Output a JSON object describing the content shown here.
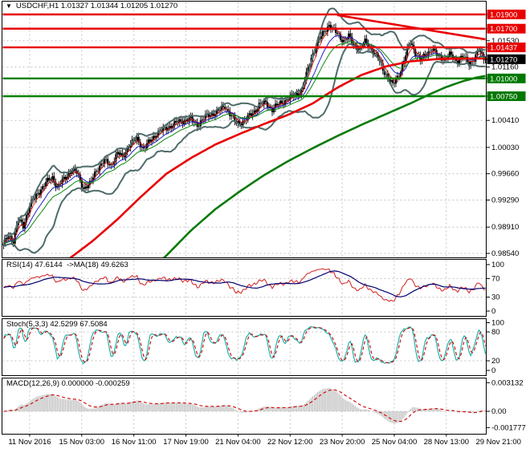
{
  "window": {
    "title": "USDCHF,H1 1.01327 1.01344 1.01205 1.01270"
  },
  "panels": {
    "rsi_label": "RSI(14) 47.6144  ->MA(18) 49.6263",
    "stoch_label": "Stoch(5,3,3) 42.5299 67.5084",
    "macd_label": "MACD(12,26,9) 0.000000 -0.000259"
  },
  "chart_data": {
    "type": "candlestick-with-indicators",
    "symbol": "USDCHF",
    "timeframe": "H1",
    "ohlc_display": {
      "open": "1.01327",
      "high": "1.01344",
      "low": "1.01205",
      "close": "1.01270"
    },
    "bars": 297,
    "x_axis": {
      "labels": [
        "11 Nov 2016",
        "15 Nov 03:00",
        "16 Nov 11:00",
        "17 Nov 19:00",
        "21 Nov 04:00",
        "22 Nov 12:00",
        "23 Nov 20:00",
        "25 Nov 04:00",
        "28 Nov 13:00",
        "29 Nov 21:00"
      ],
      "label_bars": [
        16,
        48,
        80,
        112,
        144,
        176,
        208,
        240,
        272,
        304
      ],
      "grid_bars": [
        16,
        48,
        80,
        112,
        144,
        176,
        208,
        240,
        272
      ]
    },
    "y_axis_main": {
      "plain_ticks": [
        {
          "label": "1.01530",
          "price": 1.0153
        },
        {
          "label": "1.01160",
          "price": 1.0116
        },
        {
          "label": "1.00785",
          "price": 1.00785,
          "hidden": true
        },
        {
          "label": "1.00410",
          "price": 1.0041
        },
        {
          "label": "1.00030",
          "price": 1.0003
        },
        {
          "label": "0.99660",
          "price": 0.9966
        },
        {
          "label": "0.99290",
          "price": 0.9929
        },
        {
          "label": "0.98910",
          "price": 0.9891
        },
        {
          "label": "0.98540",
          "price": 0.9854
        }
      ],
      "badges": [
        {
          "label": "1.01900",
          "price": 1.019,
          "type": "resistance"
        },
        {
          "label": "1.01700",
          "price": 1.017,
          "type": "resistance"
        },
        {
          "label": "1.01437",
          "price": 1.01437,
          "type": "resistance"
        },
        {
          "label": "1.01270",
          "price": 1.0127,
          "type": "current"
        },
        {
          "label": "1.01000",
          "price": 1.01,
          "type": "support"
        },
        {
          "label": "1.00750",
          "price": 1.0075,
          "type": "support"
        }
      ]
    },
    "levels": {
      "resistance": [
        1.019,
        1.017,
        1.01437
      ],
      "support": [
        1.01,
        1.0075
      ],
      "current": 1.0127
    },
    "trendline": {
      "from_bar": 205,
      "from_price": 1.0189,
      "to_bar": 297,
      "to_price": 1.0155
    },
    "price_anchors": [
      [
        0,
        0.9866
      ],
      [
        3,
        0.988
      ],
      [
        6,
        0.9872
      ],
      [
        9,
        0.9901
      ],
      [
        12,
        0.9893
      ],
      [
        16,
        0.9921
      ],
      [
        21,
        0.9939
      ],
      [
        26,
        0.9953
      ],
      [
        30,
        0.9961
      ],
      [
        33,
        0.9947
      ],
      [
        37,
        0.9958
      ],
      [
        42,
        0.9972
      ],
      [
        45,
        0.9967
      ],
      [
        49,
        0.9946
      ],
      [
        53,
        0.9951
      ],
      [
        57,
        0.9972
      ],
      [
        62,
        0.9984
      ],
      [
        66,
        0.9978
      ],
      [
        70,
        0.9995
      ],
      [
        73,
        0.9989
      ],
      [
        77,
        1.0006
      ],
      [
        82,
        1.0015
      ],
      [
        86,
        1.0001
      ],
      [
        90,
        1.0012
      ],
      [
        94,
        1.0023
      ],
      [
        99,
        1.0029
      ],
      [
        104,
        1.0035
      ],
      [
        109,
        1.004
      ],
      [
        114,
        1.0043
      ],
      [
        119,
        1.0035
      ],
      [
        124,
        1.0046
      ],
      [
        129,
        1.0051
      ],
      [
        132,
        1.0054
      ],
      [
        136,
        1.0061
      ],
      [
        140,
        1.0047
      ],
      [
        143,
        1.0036
      ],
      [
        148,
        1.0041
      ],
      [
        153,
        1.0051
      ],
      [
        157,
        1.0063
      ],
      [
        161,
        1.0065
      ],
      [
        165,
        1.0057
      ],
      [
        170,
        1.0065
      ],
      [
        175,
        1.0072
      ],
      [
        179,
        1.0076
      ],
      [
        183,
        1.0083
      ],
      [
        186,
        1.0105
      ],
      [
        189,
        1.0129
      ],
      [
        192,
        1.0147
      ],
      [
        195,
        1.0159
      ],
      [
        197,
        1.0166
      ],
      [
        200,
        1.0176
      ],
      [
        202,
        1.017
      ],
      [
        205,
        1.0162
      ],
      [
        209,
        1.0153
      ],
      [
        212,
        1.0159
      ],
      [
        215,
        1.0147
      ],
      [
        219,
        1.0142
      ],
      [
        222,
        1.0151
      ],
      [
        226,
        1.0142
      ],
      [
        230,
        1.0128
      ],
      [
        233,
        1.0113
      ],
      [
        236,
        1.0102
      ],
      [
        239,
        1.009
      ],
      [
        242,
        1.0102
      ],
      [
        245,
        1.0118
      ],
      [
        248,
        1.014
      ],
      [
        250,
        1.0152
      ],
      [
        253,
        1.0136
      ],
      [
        256,
        1.0125
      ],
      [
        259,
        1.0133
      ],
      [
        263,
        1.0142
      ],
      [
        267,
        1.013
      ],
      [
        271,
        1.0128
      ],
      [
        274,
        1.0133
      ],
      [
        278,
        1.0125
      ],
      [
        282,
        1.013
      ],
      [
        286,
        1.0121
      ],
      [
        289,
        1.0128
      ],
      [
        292,
        1.014
      ],
      [
        294,
        1.0131
      ],
      [
        296,
        1.0127
      ]
    ],
    "ma_red_anchors": [
      [
        30,
        0.983
      ],
      [
        40,
        0.9846
      ],
      [
        55,
        0.9872
      ],
      [
        70,
        0.9902
      ],
      [
        85,
        0.9935
      ],
      [
        100,
        0.9966
      ],
      [
        115,
        0.9988
      ],
      [
        130,
        1.0007
      ],
      [
        145,
        1.0022
      ],
      [
        160,
        1.0036
      ],
      [
        175,
        1.0049
      ],
      [
        190,
        1.0065
      ],
      [
        205,
        1.0087
      ],
      [
        220,
        1.0105
      ],
      [
        235,
        1.0117
      ],
      [
        250,
        1.0124
      ],
      [
        265,
        1.0127
      ],
      [
        280,
        1.0128
      ],
      [
        297,
        1.0128
      ]
    ],
    "ma_green_anchors": [
      [
        90,
        0.983
      ],
      [
        100,
        0.9851
      ],
      [
        115,
        0.9886
      ],
      [
        130,
        0.9916
      ],
      [
        145,
        0.9941
      ],
      [
        160,
        0.9964
      ],
      [
        175,
        0.9984
      ],
      [
        190,
        1.0002
      ],
      [
        205,
        1.0019
      ],
      [
        220,
        1.0035
      ],
      [
        235,
        1.005
      ],
      [
        250,
        1.0065
      ],
      [
        262,
        1.0078
      ],
      [
        272,
        1.0088
      ],
      [
        282,
        1.0096
      ],
      [
        290,
        1.0101
      ],
      [
        297,
        1.0104
      ]
    ],
    "indicators": {
      "rsi": {
        "period": 14,
        "ma_period": 18,
        "value": "47.6144",
        "ma_value": "49.6263",
        "ticks": [
          {
            "v": 100
          },
          {
            "v": 70,
            "grid": true
          },
          {
            "v": 30,
            "grid": true
          },
          {
            "v": 0
          }
        ]
      },
      "stoch": {
        "k": 5,
        "d": 3,
        "slowing": 3,
        "value_k": "42.5299",
        "value_d": "67.5084",
        "ticks": [
          {
            "v": 100
          },
          {
            "v": 80,
            "grid": true
          },
          {
            "v": 20,
            "grid": true
          },
          {
            "v": 0
          }
        ]
      },
      "macd": {
        "fast": 12,
        "slow": 26,
        "signal": 9,
        "value": "0.000000",
        "signal_value": "-0.000259",
        "ticks": [
          {
            "v": 0.003132,
            "label": "0.003132"
          },
          {
            "v": 0,
            "label": "0.00",
            "grid": true
          },
          {
            "v": -0.001777,
            "label": "-0.001777"
          }
        ]
      }
    },
    "colors": {
      "background": "#ffffff",
      "border": "#000000",
      "grid": "#c4c4c4",
      "candle": "#000000",
      "bollinger": "#4f6b6b",
      "ma_fast_red": "#dd0000",
      "ma_fast_blue": "#2222cc",
      "ma_fast_green": "#0a8a0a",
      "ma_slow_red": "#e80000",
      "ma_slow_green": "#0a7a0a",
      "level_resistance": "#e80000",
      "level_support": "#008000",
      "trendline": "#e80000",
      "badge_resistance": "#e80000",
      "badge_support": "#007800",
      "badge_current": "#000000",
      "rsi_line": "#d02020",
      "rsi_ma": "#000070",
      "stoch_k": "#20b2aa",
      "stoch_d": "#cc0000",
      "macd_hist": "#b4b4b4",
      "macd_signal": "#cc0000",
      "axis_text": "#000000"
    }
  }
}
